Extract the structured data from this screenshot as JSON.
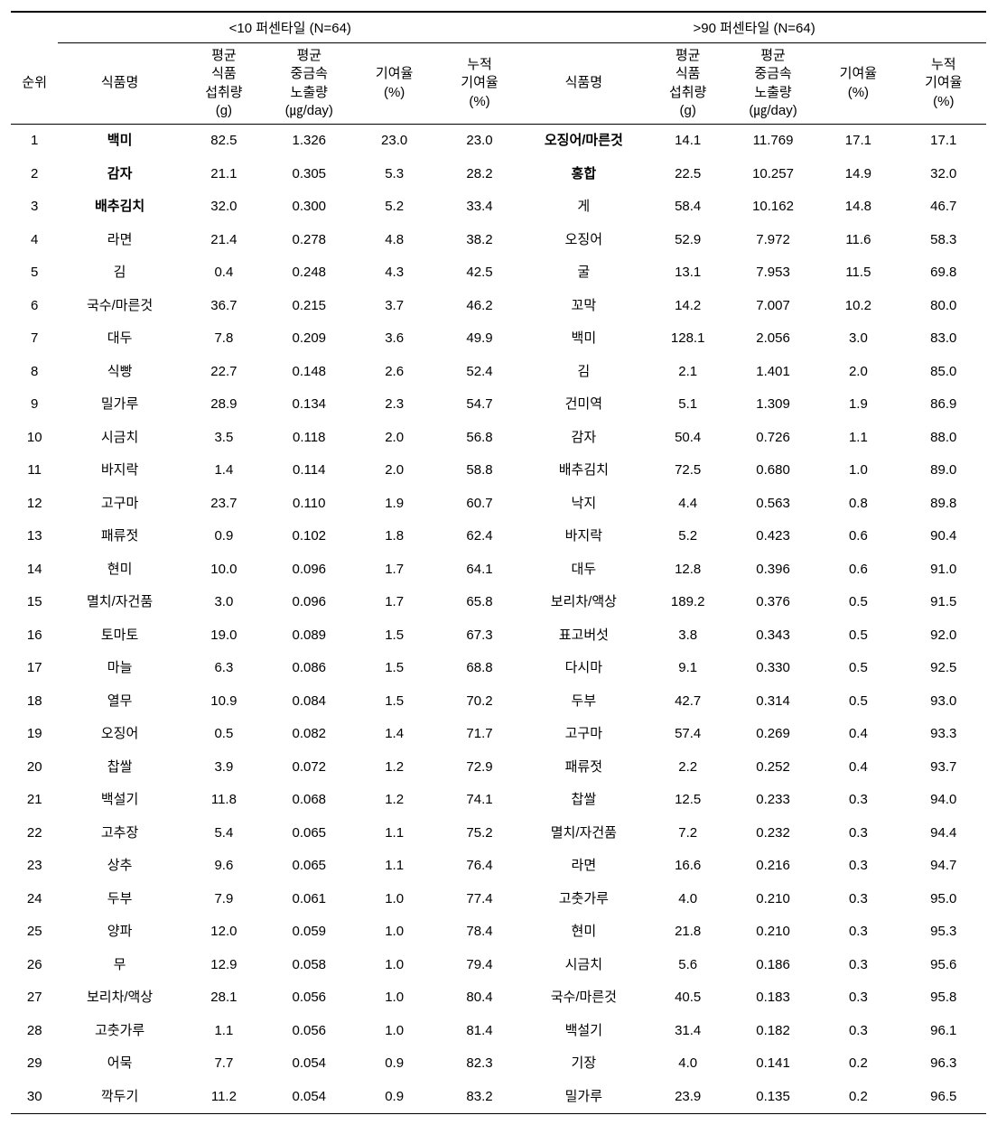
{
  "header": {
    "group_left": "<10 퍼센타일 (N=64)",
    "group_right": ">90 퍼센타일 (N=64)",
    "rank": "순위",
    "food": "식품명",
    "intake": "평균\n식품\n섭취량\n(g)",
    "exposure": "평균\n중금속\n노출량\n(㎍/day)",
    "contrib": "기여율\n(%)",
    "cum": "누적\n기여율\n(%)"
  },
  "bold_ranks_left": [
    1,
    2,
    3
  ],
  "bold_ranks_right": [
    1,
    2
  ],
  "rows": [
    {
      "r": 1,
      "lf": "백미",
      "li": "82.5",
      "le": "1.326",
      "lc": "23.0",
      "lu": "23.0",
      "rf": "오징어/마른것",
      "ri": "14.1",
      "re": "11.769",
      "rc": "17.1",
      "ru": "17.1"
    },
    {
      "r": 2,
      "lf": "감자",
      "li": "21.1",
      "le": "0.305",
      "lc": "5.3",
      "lu": "28.2",
      "rf": "홍합",
      "ri": "22.5",
      "re": "10.257",
      "rc": "14.9",
      "ru": "32.0"
    },
    {
      "r": 3,
      "lf": "배추김치",
      "li": "32.0",
      "le": "0.300",
      "lc": "5.2",
      "lu": "33.4",
      "rf": "게",
      "ri": "58.4",
      "re": "10.162",
      "rc": "14.8",
      "ru": "46.7"
    },
    {
      "r": 4,
      "lf": "라면",
      "li": "21.4",
      "le": "0.278",
      "lc": "4.8",
      "lu": "38.2",
      "rf": "오징어",
      "ri": "52.9",
      "re": "7.972",
      "rc": "11.6",
      "ru": "58.3"
    },
    {
      "r": 5,
      "lf": "김",
      "li": "0.4",
      "le": "0.248",
      "lc": "4.3",
      "lu": "42.5",
      "rf": "굴",
      "ri": "13.1",
      "re": "7.953",
      "rc": "11.5",
      "ru": "69.8"
    },
    {
      "r": 6,
      "lf": "국수/마른것",
      "li": "36.7",
      "le": "0.215",
      "lc": "3.7",
      "lu": "46.2",
      "rf": "꼬막",
      "ri": "14.2",
      "re": "7.007",
      "rc": "10.2",
      "ru": "80.0"
    },
    {
      "r": 7,
      "lf": "대두",
      "li": "7.8",
      "le": "0.209",
      "lc": "3.6",
      "lu": "49.9",
      "rf": "백미",
      "ri": "128.1",
      "re": "2.056",
      "rc": "3.0",
      "ru": "83.0"
    },
    {
      "r": 8,
      "lf": "식빵",
      "li": "22.7",
      "le": "0.148",
      "lc": "2.6",
      "lu": "52.4",
      "rf": "김",
      "ri": "2.1",
      "re": "1.401",
      "rc": "2.0",
      "ru": "85.0"
    },
    {
      "r": 9,
      "lf": "밀가루",
      "li": "28.9",
      "le": "0.134",
      "lc": "2.3",
      "lu": "54.7",
      "rf": "건미역",
      "ri": "5.1",
      "re": "1.309",
      "rc": "1.9",
      "ru": "86.9"
    },
    {
      "r": 10,
      "lf": "시금치",
      "li": "3.5",
      "le": "0.118",
      "lc": "2.0",
      "lu": "56.8",
      "rf": "감자",
      "ri": "50.4",
      "re": "0.726",
      "rc": "1.1",
      "ru": "88.0"
    },
    {
      "r": 11,
      "lf": "바지락",
      "li": "1.4",
      "le": "0.114",
      "lc": "2.0",
      "lu": "58.8",
      "rf": "배추김치",
      "ri": "72.5",
      "re": "0.680",
      "rc": "1.0",
      "ru": "89.0"
    },
    {
      "r": 12,
      "lf": "고구마",
      "li": "23.7",
      "le": "0.110",
      "lc": "1.9",
      "lu": "60.7",
      "rf": "낙지",
      "ri": "4.4",
      "re": "0.563",
      "rc": "0.8",
      "ru": "89.8"
    },
    {
      "r": 13,
      "lf": "패류젓",
      "li": "0.9",
      "le": "0.102",
      "lc": "1.8",
      "lu": "62.4",
      "rf": "바지락",
      "ri": "5.2",
      "re": "0.423",
      "rc": "0.6",
      "ru": "90.4"
    },
    {
      "r": 14,
      "lf": "현미",
      "li": "10.0",
      "le": "0.096",
      "lc": "1.7",
      "lu": "64.1",
      "rf": "대두",
      "ri": "12.8",
      "re": "0.396",
      "rc": "0.6",
      "ru": "91.0"
    },
    {
      "r": 15,
      "lf": "멸치/자건품",
      "li": "3.0",
      "le": "0.096",
      "lc": "1.7",
      "lu": "65.8",
      "rf": "보리차/액상",
      "ri": "189.2",
      "re": "0.376",
      "rc": "0.5",
      "ru": "91.5"
    },
    {
      "r": 16,
      "lf": "토마토",
      "li": "19.0",
      "le": "0.089",
      "lc": "1.5",
      "lu": "67.3",
      "rf": "표고버섯",
      "ri": "3.8",
      "re": "0.343",
      "rc": "0.5",
      "ru": "92.0"
    },
    {
      "r": 17,
      "lf": "마늘",
      "li": "6.3",
      "le": "0.086",
      "lc": "1.5",
      "lu": "68.8",
      "rf": "다시마",
      "ri": "9.1",
      "re": "0.330",
      "rc": "0.5",
      "ru": "92.5"
    },
    {
      "r": 18,
      "lf": "열무",
      "li": "10.9",
      "le": "0.084",
      "lc": "1.5",
      "lu": "70.2",
      "rf": "두부",
      "ri": "42.7",
      "re": "0.314",
      "rc": "0.5",
      "ru": "93.0"
    },
    {
      "r": 19,
      "lf": "오징어",
      "li": "0.5",
      "le": "0.082",
      "lc": "1.4",
      "lu": "71.7",
      "rf": "고구마",
      "ri": "57.4",
      "re": "0.269",
      "rc": "0.4",
      "ru": "93.3"
    },
    {
      "r": 20,
      "lf": "찹쌀",
      "li": "3.9",
      "le": "0.072",
      "lc": "1.2",
      "lu": "72.9",
      "rf": "패류젓",
      "ri": "2.2",
      "re": "0.252",
      "rc": "0.4",
      "ru": "93.7"
    },
    {
      "r": 21,
      "lf": "백설기",
      "li": "11.8",
      "le": "0.068",
      "lc": "1.2",
      "lu": "74.1",
      "rf": "찹쌀",
      "ri": "12.5",
      "re": "0.233",
      "rc": "0.3",
      "ru": "94.0"
    },
    {
      "r": 22,
      "lf": "고추장",
      "li": "5.4",
      "le": "0.065",
      "lc": "1.1",
      "lu": "75.2",
      "rf": "멸치/자건품",
      "ri": "7.2",
      "re": "0.232",
      "rc": "0.3",
      "ru": "94.4"
    },
    {
      "r": 23,
      "lf": "상추",
      "li": "9.6",
      "le": "0.065",
      "lc": "1.1",
      "lu": "76.4",
      "rf": "라면",
      "ri": "16.6",
      "re": "0.216",
      "rc": "0.3",
      "ru": "94.7"
    },
    {
      "r": 24,
      "lf": "두부",
      "li": "7.9",
      "le": "0.061",
      "lc": "1.0",
      "lu": "77.4",
      "rf": "고춧가루",
      "ri": "4.0",
      "re": "0.210",
      "rc": "0.3",
      "ru": "95.0"
    },
    {
      "r": 25,
      "lf": "양파",
      "li": "12.0",
      "le": "0.059",
      "lc": "1.0",
      "lu": "78.4",
      "rf": "현미",
      "ri": "21.8",
      "re": "0.210",
      "rc": "0.3",
      "ru": "95.3"
    },
    {
      "r": 26,
      "lf": "무",
      "li": "12.9",
      "le": "0.058",
      "lc": "1.0",
      "lu": "79.4",
      "rf": "시금치",
      "ri": "5.6",
      "re": "0.186",
      "rc": "0.3",
      "ru": "95.6"
    },
    {
      "r": 27,
      "lf": "보리차/액상",
      "li": "28.1",
      "le": "0.056",
      "lc": "1.0",
      "lu": "80.4",
      "rf": "국수/마른것",
      "ri": "40.5",
      "re": "0.183",
      "rc": "0.3",
      "ru": "95.8"
    },
    {
      "r": 28,
      "lf": "고춧가루",
      "li": "1.1",
      "le": "0.056",
      "lc": "1.0",
      "lu": "81.4",
      "rf": "백설기",
      "ri": "31.4",
      "re": "0.182",
      "rc": "0.3",
      "ru": "96.1"
    },
    {
      "r": 29,
      "lf": "어묵",
      "li": "7.7",
      "le": "0.054",
      "lc": "0.9",
      "lu": "82.3",
      "rf": "기장",
      "ri": "4.0",
      "re": "0.141",
      "rc": "0.2",
      "ru": "96.3"
    },
    {
      "r": 30,
      "lf": "깍두기",
      "li": "11.2",
      "le": "0.054",
      "lc": "0.9",
      "lu": "83.2",
      "rf": "밀가루",
      "ri": "23.9",
      "re": "0.135",
      "rc": "0.2",
      "ru": "96.5"
    }
  ]
}
